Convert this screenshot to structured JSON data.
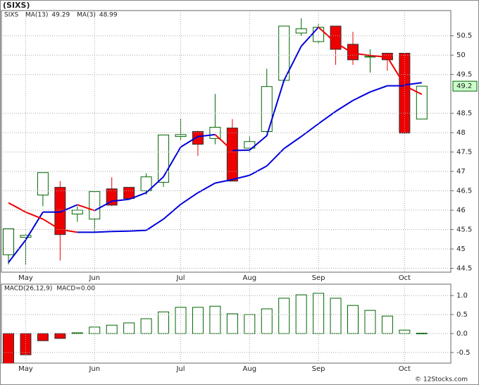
{
  "chart_data": [
    {
      "type": "candlestick",
      "title": "(SIXS)",
      "symbol": "SIXS",
      "categories": [
        null,
        "May",
        null,
        null,
        null,
        "Jun",
        null,
        null,
        null,
        null,
        "Jul",
        null,
        null,
        null,
        "Aug",
        null,
        null,
        null,
        "Sep",
        null,
        null,
        null,
        null,
        "Oct",
        null
      ],
      "open": [
        44.85,
        45.3,
        46.39,
        46.59,
        45.9,
        45.77,
        46.55,
        46.59,
        46.5,
        46.72,
        47.9,
        48.03,
        47.85,
        48.12,
        47.6,
        48.03,
        49.35,
        50.57,
        50.35,
        50.75,
        50.28,
        49.95,
        50.05,
        50.05,
        48.35
      ],
      "high": [
        45.52,
        45.38,
        46.97,
        46.75,
        46.1,
        46.48,
        46.85,
        46.59,
        46.95,
        47.94,
        48.35,
        48.05,
        49.0,
        48.35,
        47.9,
        49.65,
        50.75,
        50.95,
        50.8,
        50.75,
        50.6,
        50.15,
        50.05,
        50.05,
        49.2
      ],
      "low": [
        44.6,
        44.6,
        46.1,
        44.7,
        45.7,
        45.4,
        46.1,
        46.3,
        46.4,
        46.6,
        47.8,
        47.4,
        47.7,
        46.75,
        47.5,
        48.0,
        49.3,
        50.5,
        50.3,
        49.75,
        49.75,
        49.55,
        49.6,
        47.99,
        48.35
      ],
      "close": [
        45.52,
        45.35,
        46.97,
        45.37,
        46.0,
        46.48,
        46.13,
        46.3,
        46.86,
        47.94,
        47.95,
        47.7,
        48.14,
        46.75,
        47.77,
        49.19,
        50.75,
        50.68,
        50.72,
        50.15,
        49.88,
        49.97,
        49.88,
        47.99,
        49.2
      ],
      "up_color": "#006600",
      "down_color": "#ee0000",
      "series": [
        {
          "name": "MA(13)",
          "legend_value": "49.29",
          "color": "#0000dd",
          "down_color": "#ee0000",
          "values": [
            44.65,
            45.23,
            45.95,
            45.95,
            46.14,
            45.99,
            46.23,
            46.28,
            46.45,
            46.86,
            47.63,
            47.9,
            47.95,
            47.54,
            47.55,
            47.92,
            49.35,
            50.23,
            50.72,
            50.32,
            50.05,
            49.99,
            49.95,
            49.23,
            49.29
          ]
        },
        {
          "name": "MA(3)",
          "legend_value": "48.99",
          "color": "#0000dd",
          "down_color": "#ee0000",
          "values": [
            46.19,
            45.95,
            45.77,
            45.5,
            45.43,
            45.43,
            45.45,
            45.46,
            45.48,
            45.77,
            46.15,
            46.45,
            46.7,
            46.79,
            46.9,
            47.14,
            47.59,
            47.9,
            48.23,
            48.55,
            48.83,
            49.05,
            49.21,
            49.21,
            48.99
          ]
        }
      ],
      "ylim": [
        44.4,
        51.15
      ],
      "yticks": [
        44.5,
        45.0,
        45.5,
        46.0,
        46.5,
        47.0,
        47.5,
        48.0,
        48.5,
        49.5,
        50.0,
        50.5
      ],
      "grid": true
    },
    {
      "type": "bar",
      "name": "MACD(26,12,9)",
      "legend_value": "MACD=0.00",
      "categories": [
        null,
        "May",
        null,
        null,
        null,
        "Jun",
        null,
        null,
        null,
        null,
        "Jul",
        null,
        null,
        null,
        "Aug",
        null,
        null,
        null,
        "Sep",
        null,
        null,
        null,
        null,
        "Oct",
        null
      ],
      "values": [
        -0.8,
        -0.56,
        -0.19,
        -0.13,
        0.02,
        0.17,
        0.22,
        0.28,
        0.39,
        0.57,
        0.69,
        0.69,
        0.72,
        0.52,
        0.5,
        0.65,
        0.93,
        1.02,
        1.06,
        0.93,
        0.74,
        0.61,
        0.46,
        0.09,
        0.01
      ],
      "up_color": "#006600",
      "down_color": "#ee0000",
      "ylim": [
        -0.78,
        1.3
      ],
      "yticks": [
        {
          "value": -0.5,
          "label": "-0.5"
        },
        {
          "value": 0,
          "label": "0.0"
        },
        {
          "value": 0.5,
          "label": "0.5"
        },
        {
          "value": 1,
          "label": "1.0"
        }
      ],
      "grid": true
    }
  ],
  "footer": "© 12Stocks.com"
}
